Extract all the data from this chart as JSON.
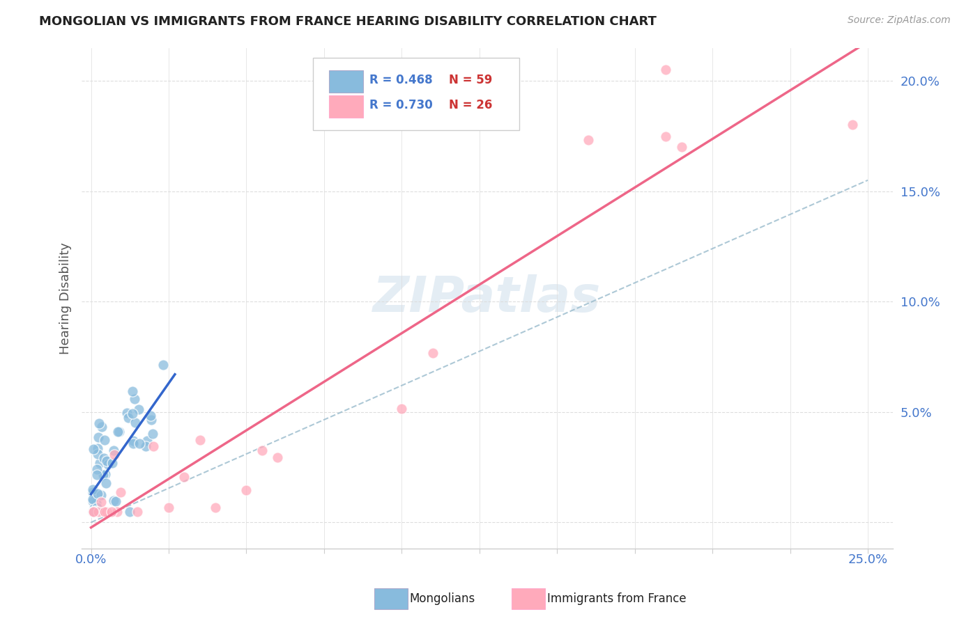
{
  "title": "MONGOLIAN VS IMMIGRANTS FROM FRANCE HEARING DISABILITY CORRELATION CHART",
  "source": "Source: ZipAtlas.com",
  "ylabel": "Hearing Disability",
  "ytick_values": [
    0.0,
    0.05,
    0.1,
    0.15,
    0.2
  ],
  "ytick_labels": [
    "",
    "5.0%",
    "10.0%",
    "15.0%",
    "20.0%"
  ],
  "xlim": [
    -0.003,
    0.258
  ],
  "ylim": [
    -0.012,
    0.215
  ],
  "legend_r_mongolian": "R = 0.468",
  "legend_n_mongolian": "N = 59",
  "legend_r_france": "R = 0.730",
  "legend_n_france": "N = 26",
  "color_mongolian": "#88bbdd",
  "color_france": "#ffaabb",
  "color_mongolian_line": "#3366cc",
  "color_france_line": "#ee6688",
  "color_dashed": "#99bbcc",
  "watermark": "ZIPatlas",
  "axis_label_color": "#4477cc",
  "title_color": "#222222",
  "source_color": "#999999",
  "grid_color": "#dddddd",
  "grid_linestyle": "--"
}
